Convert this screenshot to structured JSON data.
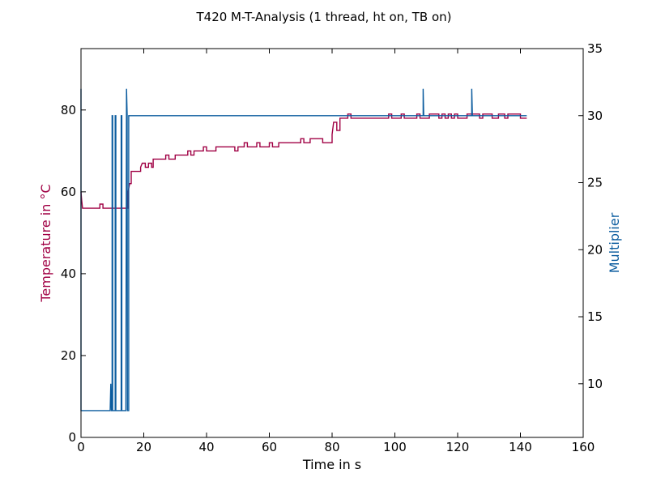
{
  "chart_data": {
    "type": "line",
    "title": "T420 M-T-Analysis (1 thread, ht on, TB on)",
    "xlabel": "Time in s",
    "ylabel_left": "Temperature in °C",
    "ylabel_right": "Multiplier",
    "xlim": [
      0,
      160
    ],
    "ylim_left": [
      0,
      95
    ],
    "ylim_right": [
      6,
      35
    ],
    "x_ticks": [
      "0",
      "20",
      "40",
      "60",
      "80",
      "100",
      "120",
      "140",
      "160"
    ],
    "y_left_ticks": [
      "0",
      "20",
      "40",
      "60",
      "80"
    ],
    "y_right_ticks": [
      "10",
      "15",
      "20",
      "25",
      "30",
      "35"
    ],
    "colors": {
      "temperature": "#a00044",
      "multiplier": "#0a5b9e"
    },
    "series": [
      {
        "axis": "left",
        "color": "#a00044",
        "points": [
          [
            0,
            60
          ],
          [
            0.2,
            58
          ],
          [
            0.5,
            56
          ],
          [
            6,
            56
          ],
          [
            6,
            57
          ],
          [
            7,
            57
          ],
          [
            7,
            56
          ],
          [
            15,
            56
          ],
          [
            15,
            60
          ],
          [
            15.5,
            62
          ],
          [
            16,
            62
          ],
          [
            16,
            65
          ],
          [
            19,
            65
          ],
          [
            19,
            66
          ],
          [
            19.5,
            67
          ],
          [
            20.5,
            67
          ],
          [
            20.5,
            66
          ],
          [
            21.5,
            66
          ],
          [
            21.5,
            67
          ],
          [
            22.5,
            67
          ],
          [
            22.5,
            66
          ],
          [
            23,
            66
          ],
          [
            23,
            68
          ],
          [
            27,
            68
          ],
          [
            27,
            69
          ],
          [
            28,
            69
          ],
          [
            28,
            68
          ],
          [
            30,
            68
          ],
          [
            30,
            69
          ],
          [
            34,
            69
          ],
          [
            34,
            70
          ],
          [
            35,
            70
          ],
          [
            35,
            69
          ],
          [
            36,
            69
          ],
          [
            36,
            70
          ],
          [
            39,
            70
          ],
          [
            39,
            71
          ],
          [
            40,
            71
          ],
          [
            40,
            70
          ],
          [
            43,
            70
          ],
          [
            43,
            71
          ],
          [
            49,
            71
          ],
          [
            49,
            70
          ],
          [
            50,
            70
          ],
          [
            50,
            71
          ],
          [
            52,
            71
          ],
          [
            52,
            72
          ],
          [
            53,
            72
          ],
          [
            53,
            71
          ],
          [
            56,
            71
          ],
          [
            56,
            72
          ],
          [
            57,
            72
          ],
          [
            57,
            71
          ],
          [
            60,
            71
          ],
          [
            60,
            72
          ],
          [
            61,
            72
          ],
          [
            61,
            71
          ],
          [
            63,
            71
          ],
          [
            63,
            72
          ],
          [
            70,
            72
          ],
          [
            70,
            73
          ],
          [
            71,
            73
          ],
          [
            71,
            72
          ],
          [
            73,
            72
          ],
          [
            73,
            73
          ],
          [
            77,
            73
          ],
          [
            77,
            72
          ],
          [
            80,
            72
          ],
          [
            80,
            74
          ],
          [
            80.5,
            77
          ],
          [
            81.5,
            77
          ],
          [
            81.5,
            75
          ],
          [
            82.5,
            75
          ],
          [
            82.5,
            78
          ],
          [
            85,
            78
          ],
          [
            85,
            79
          ],
          [
            86,
            79
          ],
          [
            86,
            78
          ],
          [
            98,
            78
          ],
          [
            98,
            79
          ],
          [
            99,
            79
          ],
          [
            99,
            78
          ],
          [
            102,
            78
          ],
          [
            102,
            79
          ],
          [
            103,
            79
          ],
          [
            103,
            78
          ],
          [
            107,
            78
          ],
          [
            107,
            79
          ],
          [
            108,
            79
          ],
          [
            108,
            78
          ],
          [
            111,
            78
          ],
          [
            111,
            79
          ],
          [
            114,
            79
          ],
          [
            114,
            78
          ],
          [
            115,
            78
          ],
          [
            115,
            79
          ],
          [
            116,
            79
          ],
          [
            116,
            78
          ],
          [
            117,
            78
          ],
          [
            117,
            79
          ],
          [
            118,
            79
          ],
          [
            118,
            78
          ],
          [
            119,
            78
          ],
          [
            119,
            79
          ],
          [
            120,
            79
          ],
          [
            120,
            78
          ],
          [
            123,
            78
          ],
          [
            123,
            79
          ],
          [
            127,
            79
          ],
          [
            127,
            78
          ],
          [
            128,
            78
          ],
          [
            128,
            79
          ],
          [
            131,
            79
          ],
          [
            131,
            78
          ],
          [
            133,
            78
          ],
          [
            133,
            79
          ],
          [
            135,
            79
          ],
          [
            135,
            78
          ],
          [
            136,
            78
          ],
          [
            136,
            79
          ],
          [
            140,
            79
          ],
          [
            140,
            78
          ],
          [
            142,
            78
          ]
        ]
      },
      {
        "axis": "right",
        "color": "#0a5b9e",
        "points": [
          [
            0,
            32
          ],
          [
            0,
            8
          ],
          [
            9.3,
            8
          ],
          [
            9.5,
            10
          ],
          [
            9.7,
            8
          ],
          [
            9.9,
            8
          ],
          [
            9.9,
            30
          ],
          [
            10.1,
            30
          ],
          [
            10.1,
            8
          ],
          [
            10.9,
            8
          ],
          [
            10.9,
            30
          ],
          [
            11.1,
            30
          ],
          [
            11.1,
            8
          ],
          [
            12.8,
            8
          ],
          [
            12.8,
            30
          ],
          [
            13.0,
            30
          ],
          [
            13.0,
            8
          ],
          [
            14.3,
            8
          ],
          [
            14.5,
            32
          ],
          [
            14.7,
            30
          ],
          [
            14.8,
            8
          ],
          [
            15.2,
            8
          ],
          [
            15.2,
            30
          ],
          [
            109,
            30
          ],
          [
            109,
            32
          ],
          [
            109.2,
            30
          ],
          [
            124.5,
            30
          ],
          [
            124.5,
            32
          ],
          [
            124.7,
            30
          ],
          [
            142,
            30
          ]
        ]
      }
    ]
  }
}
